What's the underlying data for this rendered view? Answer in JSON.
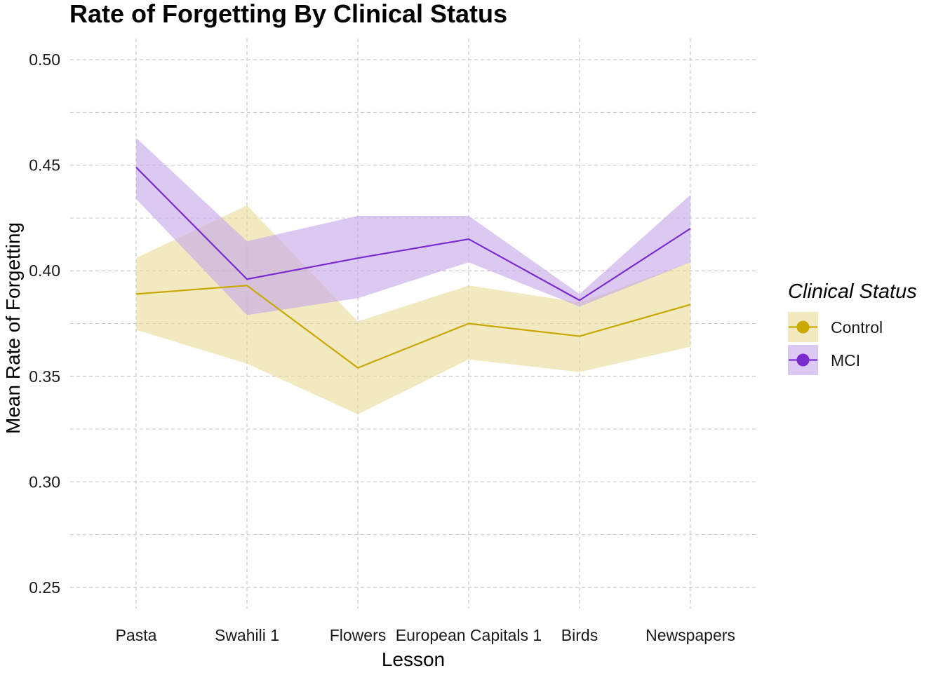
{
  "chart_data": {
    "type": "line",
    "title": "Rate of Forgetting By Clinical Status",
    "xlabel": "Lesson",
    "ylabel": "Mean Rate of Forgetting",
    "categories": [
      "Pasta",
      "Swahili 1",
      "Flowers",
      "European Capitals 1",
      "Birds",
      "Newspapers"
    ],
    "ylim": [
      0.24,
      0.51
    ],
    "yticks": [
      0.25,
      0.3,
      0.35,
      0.4,
      0.45,
      0.5
    ],
    "ytick_labels": [
      "0.25",
      "0.30",
      "0.35",
      "0.40",
      "0.45",
      "0.50"
    ],
    "grid": true,
    "legend": {
      "title": "Clinical Status",
      "placement": "right"
    },
    "series": [
      {
        "name": "Control",
        "color": "#c9a800",
        "ribbon_color": "#e8dc9a",
        "values": [
          0.389,
          0.393,
          0.354,
          0.375,
          0.369,
          0.384
        ],
        "lower": [
          0.372,
          0.356,
          0.332,
          0.358,
          0.352,
          0.364
        ],
        "upper": [
          0.406,
          0.431,
          0.376,
          0.393,
          0.385,
          0.404
        ]
      },
      {
        "name": "MCI",
        "color": "#7a2bd0",
        "ribbon_color": "#c7a8ea",
        "values": [
          0.449,
          0.396,
          0.406,
          0.415,
          0.386,
          0.42
        ],
        "lower": [
          0.434,
          0.379,
          0.387,
          0.404,
          0.383,
          0.404
        ],
        "upper": [
          0.463,
          0.414,
          0.426,
          0.426,
          0.389,
          0.436
        ]
      }
    ]
  }
}
